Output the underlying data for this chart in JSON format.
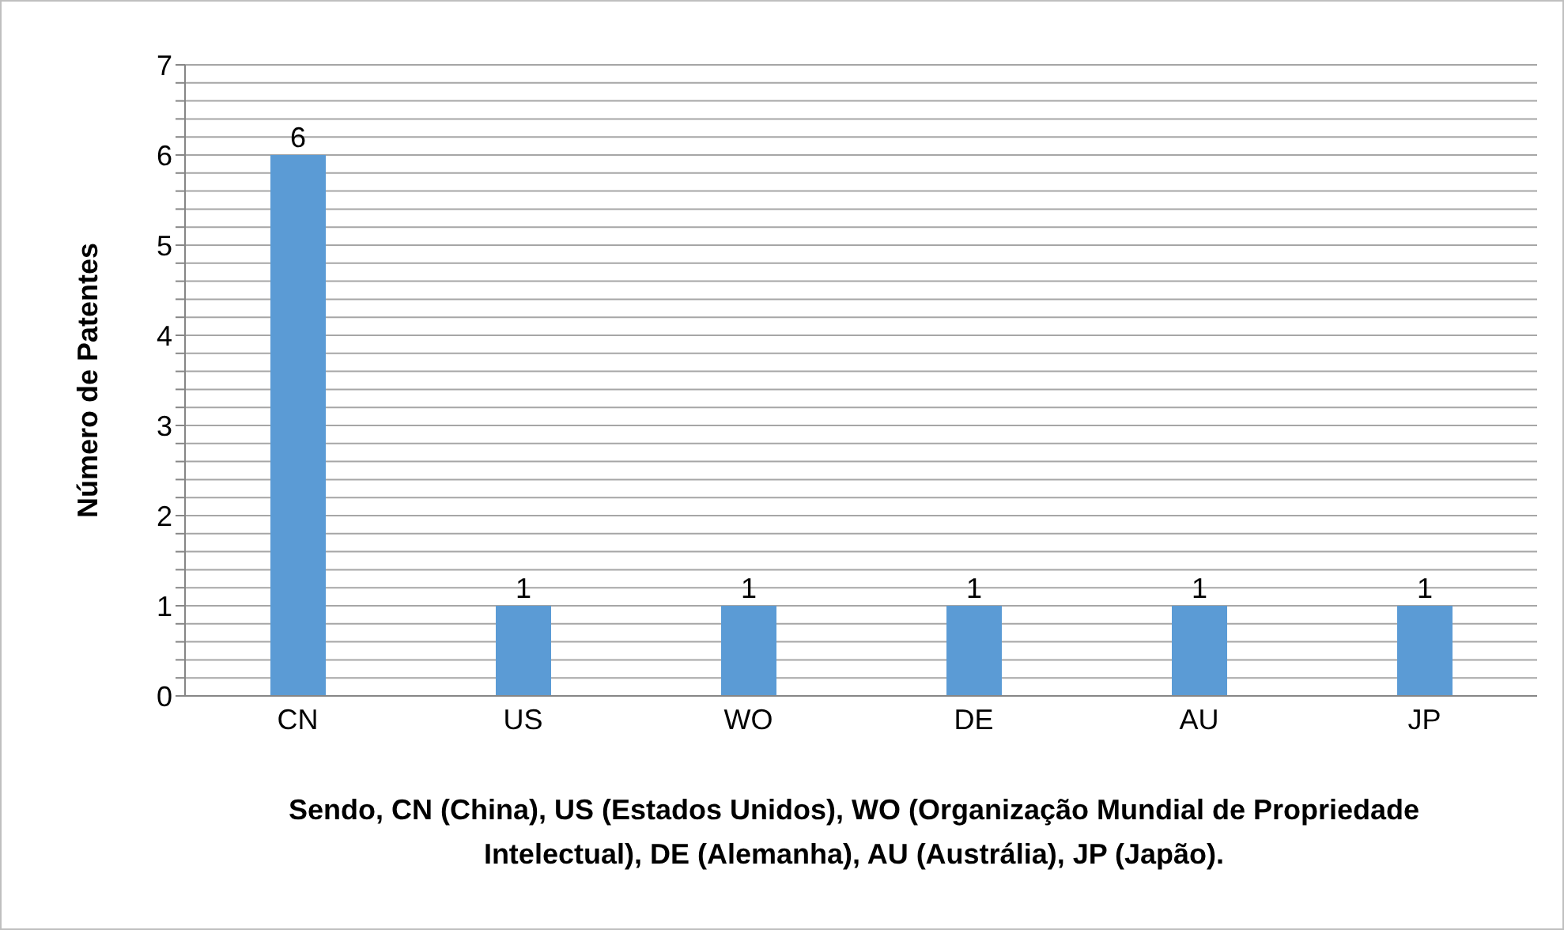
{
  "chart_data": {
    "type": "bar",
    "categories": [
      "CN",
      "US",
      "WO",
      "DE",
      "AU",
      "JP"
    ],
    "values": [
      6,
      1,
      1,
      1,
      1,
      1
    ],
    "color": "#5b9bd5",
    "ylabel": "Número de Patentes",
    "xlabel": "Sendo, CN (China), US (Estados Unidos), WO (Organização Mundial de Propriedade Intelectual), DE (Alemanha), AU (Austrália), JP (Japão).",
    "ylim": [
      0,
      7
    ],
    "yticks": [
      0,
      {
        "value": 0.2,
        "label": null
      },
      {
        "value": 0.4,
        "label": null
      },
      {
        "value": 0.6,
        "label": null
      },
      {
        "value": 0.8,
        "label": null
      },
      1,
      {
        "value": 1.2,
        "label": null
      },
      {
        "value": 1.4,
        "label": null
      },
      {
        "value": 1.6,
        "label": null
      },
      {
        "value": 1.8,
        "label": null
      },
      2,
      {
        "value": 2.2,
        "label": null
      },
      {
        "value": 2.4,
        "label": null
      },
      {
        "value": 2.6,
        "label": null
      },
      {
        "value": 2.8,
        "label": null
      },
      3,
      {
        "value": 3.2,
        "label": null
      },
      {
        "value": 3.4,
        "label": null
      },
      {
        "value": 3.6,
        "label": null
      },
      {
        "value": 3.8,
        "label": null
      },
      4,
      {
        "value": 4.2,
        "label": null
      },
      {
        "value": 4.4,
        "label": null
      },
      {
        "value": 4.6,
        "label": null
      },
      {
        "value": 4.8,
        "label": null
      },
      5,
      {
        "value": 5.2,
        "label": null
      },
      {
        "value": 5.4,
        "label": null
      },
      {
        "value": 5.6,
        "label": null
      },
      {
        "value": 5.8,
        "label": null
      },
      6,
      {
        "value": 6.2,
        "label": null
      },
      {
        "value": 6.4,
        "label": null
      },
      {
        "value": 6.6,
        "label": null
      },
      {
        "value": 6.8,
        "label": null
      },
      7
    ],
    "grid": "y",
    "data_labels": true
  }
}
